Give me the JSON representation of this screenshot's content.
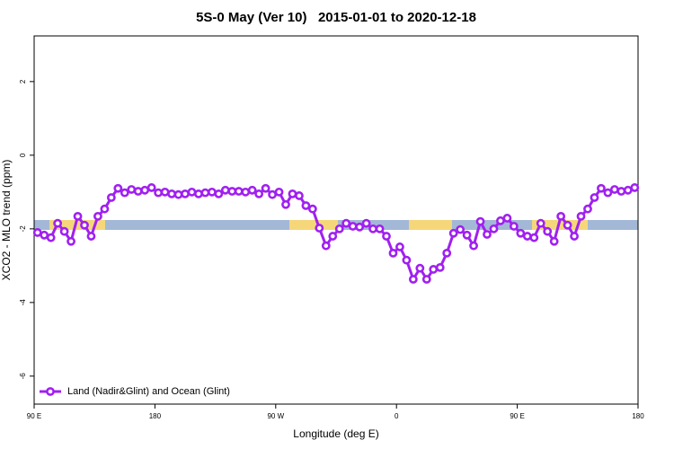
{
  "chart_data": {
    "type": "line",
    "title": "5S-0 May (Ver 10)   2015-01-01 to 2020-12-18",
    "xlabel": "Longitude (deg E)",
    "ylabel": "XCO2 - MLO trend (ppm)",
    "xlim": [
      90,
      540
    ],
    "ylim": [
      -6.76,
      3.24
    ],
    "xticks": [
      {
        "value": 90,
        "label": "90 E"
      },
      180,
      {
        "value": 270,
        "label": "90 W"
      },
      {
        "value": 360,
        "label": "0"
      },
      {
        "value": 450,
        "label": "90 E"
      },
      {
        "value": 540,
        "label": "180"
      }
    ],
    "yticks": [
      -6,
      -4,
      -2,
      0,
      2
    ],
    "legend": "bottom-left",
    "x": [
      92.5,
      97.5,
      102.5,
      107.5,
      112.5,
      117.5,
      122.5,
      127.5,
      132.5,
      137.5,
      142.5,
      147.5,
      152.5,
      157.5,
      162.5,
      167.5,
      172.5,
      177.5,
      182.5,
      187.5,
      192.5,
      197.5,
      202.5,
      207.5,
      212.5,
      217.5,
      222.5,
      227.5,
      232.5,
      237.5,
      242.5,
      247.5,
      252.5,
      257.5,
      262.5,
      267.5,
      272.5,
      277.5,
      282.5,
      287.5,
      292.5,
      297.5,
      302.5,
      307.5,
      312.5,
      317.5,
      322.5,
      327.5,
      332.5,
      337.5,
      342.5,
      347.5,
      352.5,
      357.5,
      362.5,
      367.5,
      372.5,
      377.5,
      382.5,
      387.5,
      392.5,
      397.5,
      402.5,
      407.5,
      412.5,
      417.5,
      422.5,
      427.5,
      432.5,
      437.5,
      442.5,
      447.5,
      452.5,
      457.5,
      462.5,
      467.5,
      472.5,
      477.5,
      482.5,
      487.5,
      492.5,
      497.5,
      502.5,
      507.5,
      512.5,
      517.5,
      522.5,
      527.5,
      532.5,
      537.5
    ],
    "series": [
      {
        "name": "Land (Nadir&Glint) and Ocean (Glint)",
        "color": "#a020f0",
        "values": [
          -2.1,
          -2.17,
          -2.24,
          -1.85,
          -2.07,
          -2.34,
          -1.66,
          -1.9,
          -2.2,
          -1.66,
          -1.46,
          -1.15,
          -0.9,
          -1.02,
          -0.93,
          -0.98,
          -0.95,
          -0.88,
          -1.02,
          -1.0,
          -1.05,
          -1.07,
          -1.05,
          -1.0,
          -1.05,
          -1.02,
          -1.0,
          -1.05,
          -0.95,
          -0.98,
          -0.98,
          -1.0,
          -0.95,
          -1.05,
          -0.9,
          -1.07,
          -1.0,
          -1.34,
          -1.05,
          -1.1,
          -1.37,
          -1.46,
          -1.98,
          -2.46,
          -2.2,
          -2.0,
          -1.85,
          -1.93,
          -1.95,
          -1.85,
          -2.0,
          -2.0,
          -2.2,
          -2.66,
          -2.49,
          -2.85,
          -3.37,
          -3.07,
          -3.37,
          -3.1,
          -3.05,
          -2.66,
          -2.12,
          -2.02,
          -2.17,
          -2.46,
          -1.8,
          -2.15,
          -2.0,
          -1.78,
          -1.71,
          -1.93,
          -2.12,
          -2.2,
          -2.24,
          -1.85,
          -2.07,
          -2.34,
          -1.66,
          -1.9,
          -2.2,
          -1.66,
          -1.46,
          -1.15,
          -0.9,
          -1.02,
          -0.93,
          -0.98,
          -0.95,
          -0.88
        ]
      }
    ]
  }
}
